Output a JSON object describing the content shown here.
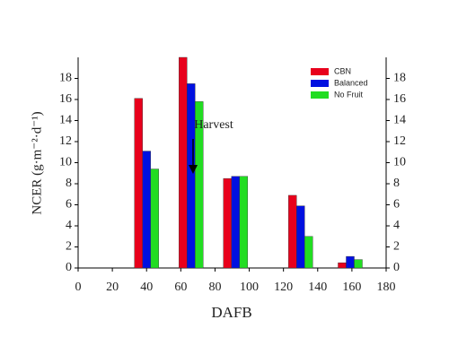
{
  "chart_data": {
    "type": "bar",
    "x_label": "DAFB",
    "y_label": "NCER (g·m⁻²·d⁻¹)",
    "annotation": "Harvest",
    "x": [
      40,
      66,
      92,
      130,
      159
    ],
    "series": [
      {
        "name": "CBN",
        "color": "#e8001c",
        "values": [
          16.1,
          20,
          8.5,
          6.9,
          0.5
        ]
      },
      {
        "name": "Balanced",
        "color": "#0010e0",
        "values": [
          11.1,
          17.5,
          8.7,
          5.9,
          1.1
        ]
      },
      {
        "name": "No Fruit",
        "color": "#22dd22",
        "values": [
          9.4,
          15.8,
          8.7,
          3.0,
          0.8
        ]
      }
    ],
    "xlim": [
      0,
      180
    ],
    "xticks": [
      0,
      20,
      40,
      60,
      80,
      100,
      120,
      140,
      160,
      180
    ],
    "ylim": [
      0,
      20
    ],
    "yticks": [
      0,
      2,
      4,
      6,
      8,
      10,
      12,
      14,
      16,
      18
    ],
    "y2lim": [
      0,
      20
    ],
    "y2ticks": [
      0,
      2,
      4,
      6,
      8,
      10,
      12,
      14,
      16,
      18
    ],
    "legend": "upper right"
  }
}
